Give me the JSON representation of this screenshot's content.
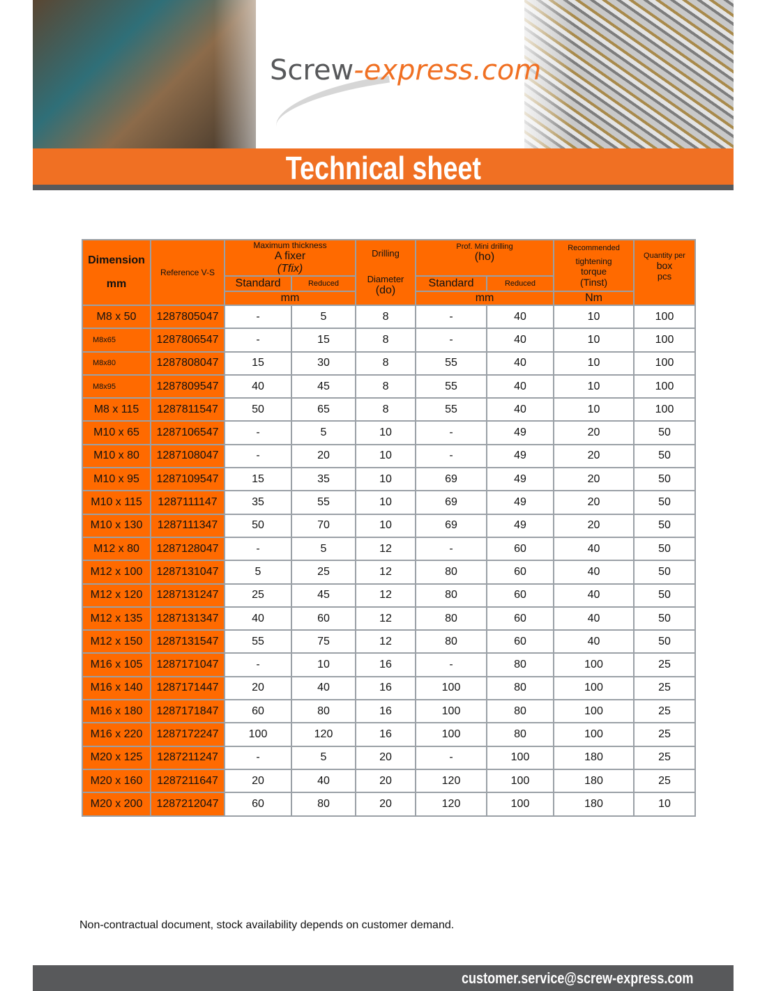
{
  "banner": {
    "logo_part1": "Screw",
    "logo_part2": "-express.com",
    "title": "Technical sheet"
  },
  "colors": {
    "accent": "#ff6a00",
    "banner_orange": "#f07023",
    "dark_gray": "#58595b"
  },
  "table": {
    "headers": {
      "dimension": "Dimension",
      "dimension_unit": "mm",
      "reference": "Reference V-S",
      "max_thickness": "Maximum thickness",
      "a_fixer": "A fixer",
      "tfix": "(Tfix)",
      "standard": "Standard",
      "reduced": "Reduced",
      "mm": "mm",
      "drilling": "Drilling",
      "diameter": "Diameter",
      "do": "(do)",
      "prof_mini": "Prof. Mini drilling",
      "ho": "(ho)",
      "recommended": "Recommended",
      "tightening": "tightening",
      "torque": "torque",
      "tinst": "(Tinst)",
      "nm": "Nm",
      "quantity_per": "Quantity per",
      "box": "box",
      "pcs": "pcs"
    },
    "rows": [
      [
        "M8 x 50",
        "1287805047",
        "-",
        "5",
        "8",
        "-",
        "40",
        "10",
        "100"
      ],
      [
        "M8x65",
        "1287806547",
        "-",
        "15",
        "8",
        "-",
        "40",
        "10",
        "100"
      ],
      [
        "M8x80",
        "1287808047",
        "15",
        "30",
        "8",
        "55",
        "40",
        "10",
        "100"
      ],
      [
        "M8x95",
        "1287809547",
        "40",
        "45",
        "8",
        "55",
        "40",
        "10",
        "100"
      ],
      [
        "M8 x 115",
        "1287811547",
        "50",
        "65",
        "8",
        "55",
        "40",
        "10",
        "100"
      ],
      [
        "M10 x 65",
        "1287106547",
        "-",
        "5",
        "10",
        "-",
        "49",
        "20",
        "50"
      ],
      [
        "M10 x 80",
        "1287108047",
        "-",
        "20",
        "10",
        "-",
        "49",
        "20",
        "50"
      ],
      [
        "M10 x 95",
        "1287109547",
        "15",
        "35",
        "10",
        "69",
        "49",
        "20",
        "50"
      ],
      [
        "M10 x 115",
        "1287111147",
        "35",
        "55",
        "10",
        "69",
        "49",
        "20",
        "50"
      ],
      [
        "M10 x 130",
        "1287111347",
        "50",
        "70",
        "10",
        "69",
        "49",
        "20",
        "50"
      ],
      [
        "M12 x 80",
        "1287128047",
        "-",
        "5",
        "12",
        "-",
        "60",
        "40",
        "50"
      ],
      [
        "M12 x 100",
        "1287131047",
        "5",
        "25",
        "12",
        "80",
        "60",
        "40",
        "50"
      ],
      [
        "M12 x 120",
        "1287131247",
        "25",
        "45",
        "12",
        "80",
        "60",
        "40",
        "50"
      ],
      [
        "M12 x 135",
        "1287131347",
        "40",
        "60",
        "12",
        "80",
        "60",
        "40",
        "50"
      ],
      [
        "M12 x 150",
        "1287131547",
        "55",
        "75",
        "12",
        "80",
        "60",
        "40",
        "50"
      ],
      [
        "M16 x 105",
        "1287171047",
        "-",
        "10",
        "16",
        "-",
        "80",
        "100",
        "25"
      ],
      [
        "M16 x 140",
        "1287171447",
        "20",
        "40",
        "16",
        "100",
        "80",
        "100",
        "25"
      ],
      [
        "M16 x 180",
        "1287171847",
        "60",
        "80",
        "16",
        "100",
        "80",
        "100",
        "25"
      ],
      [
        "M16 x 220",
        "1287172247",
        "100",
        "120",
        "16",
        "100",
        "80",
        "100",
        "25"
      ],
      [
        "M20 x 125",
        "1287211247",
        "-",
        "5",
        "20",
        "-",
        "100",
        "180",
        "25"
      ],
      [
        "M20 x 160",
        "1287211647",
        "20",
        "40",
        "20",
        "120",
        "100",
        "180",
        "25"
      ],
      [
        "M20 x 200",
        "1287212047",
        "60",
        "80",
        "20",
        "120",
        "100",
        "180",
        "10"
      ]
    ]
  },
  "note": "Non-contractual document, stock availability depends on customer demand.",
  "footer": {
    "email": "customer.service@screw-express.com"
  }
}
